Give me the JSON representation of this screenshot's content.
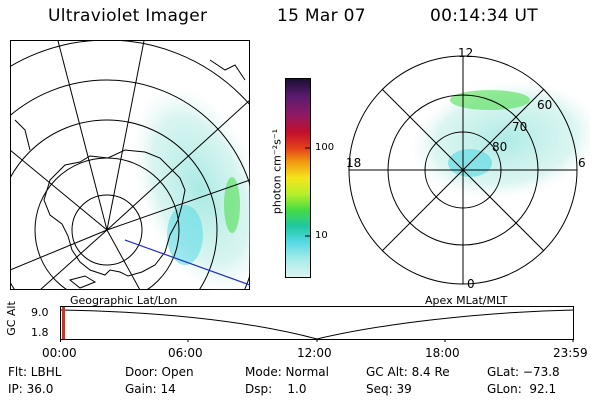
{
  "header": {
    "instrument": "Ultraviolet Imager",
    "date": "15 Mar 07",
    "time": "00:14:34 UT"
  },
  "left_panel": {
    "label": "Geographic Lat/Lon"
  },
  "right_panel": {
    "label": "Apex MLat/MLT",
    "mlt_labels": {
      "top": "12",
      "left": "18",
      "right": "6",
      "bottom": "0"
    },
    "lat_labels": [
      "60",
      "70",
      "80"
    ]
  },
  "colorbar": {
    "unit_label": "photon cm⁻²s⁻¹",
    "ticks": [
      "100",
      "10"
    ],
    "colors": [
      "#1a0f33",
      "#5a1b6e",
      "#8e1a66",
      "#c20f2c",
      "#e3401a",
      "#f19a11",
      "#f6e41b",
      "#b9ef2b",
      "#46dc43",
      "#1fc7a0",
      "#55d9e3",
      "#a7ece9",
      "#dff4f2"
    ]
  },
  "timeline": {
    "ylabel": "GC Alt",
    "yticks": [
      "9.0",
      "1.8"
    ],
    "xticks": [
      "00:00",
      "06:00",
      "12:00",
      "18:00",
      "23:59"
    ],
    "marker_color": "#c0392b"
  },
  "info": {
    "flt": "Flt: LBHL",
    "ip": "IP: 36.0",
    "door": "Door: Open",
    "gain": "Gain: 14",
    "mode": "Mode: Normal",
    "dsp": "Dsp:    1.0",
    "gcalt": "GC Alt: 8.4 Re",
    "seq": "Seq: 39",
    "glat": "GLat: −73.8",
    "glon": "GLon:  92.1"
  }
}
